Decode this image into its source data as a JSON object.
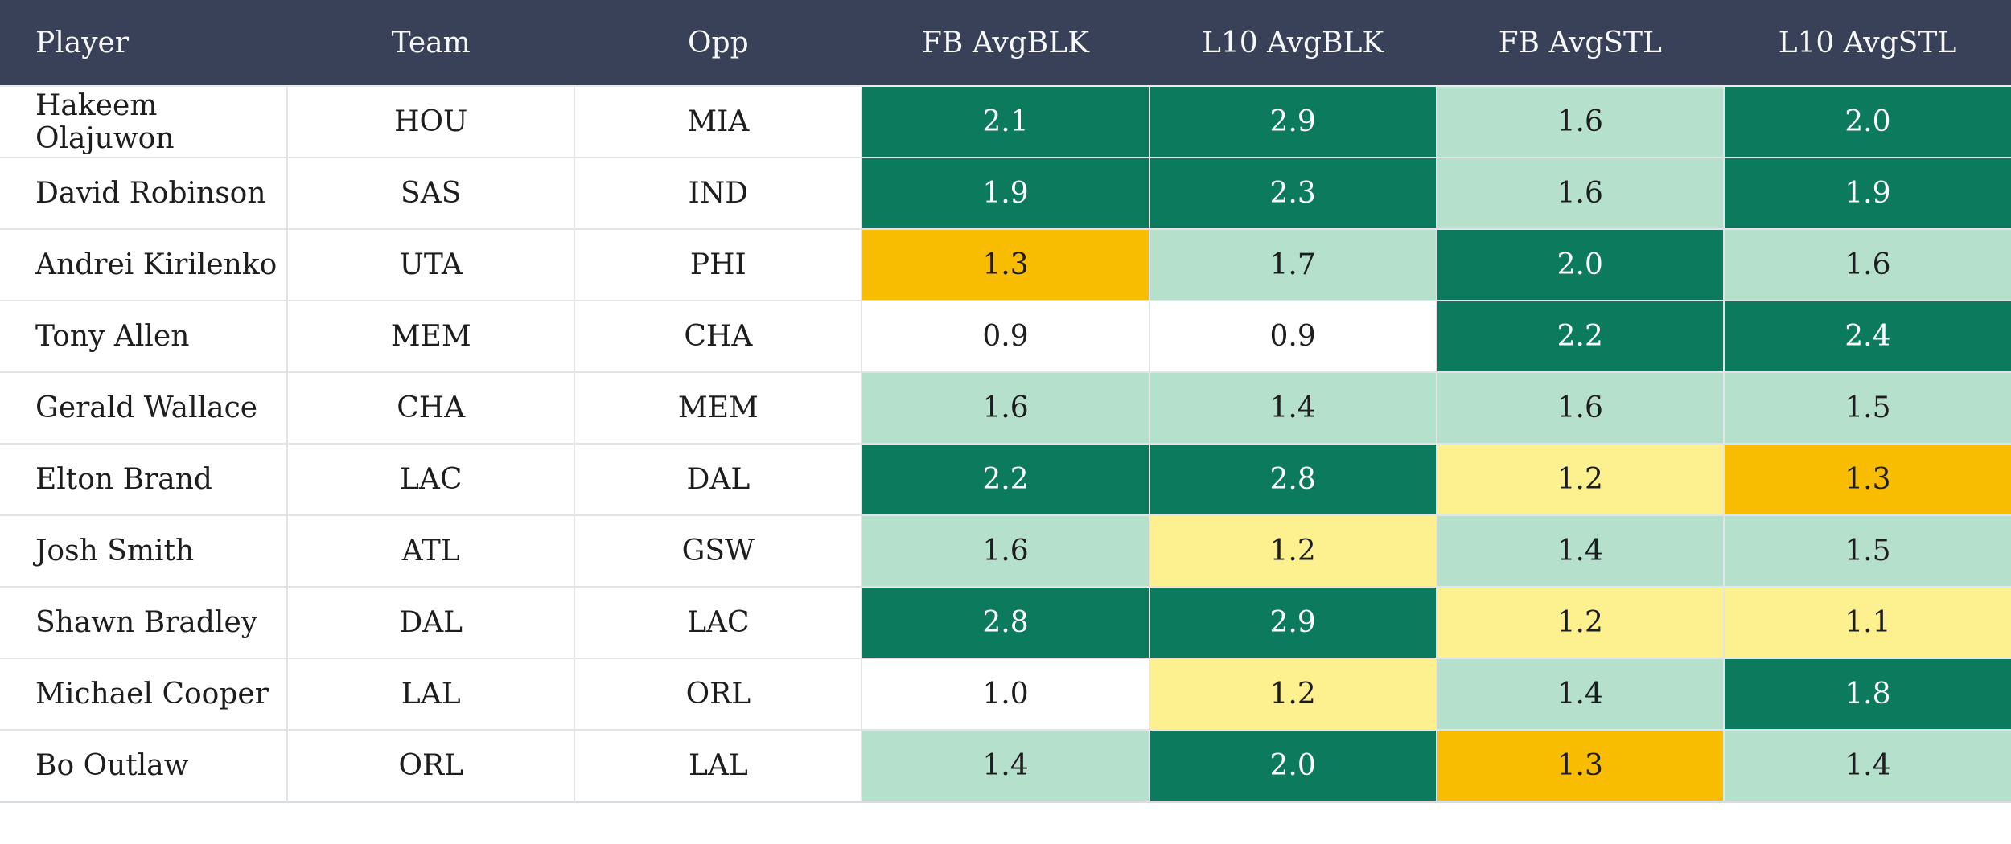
{
  "table": {
    "columns": {
      "player": "Player",
      "team": "Team",
      "opp": "Opp",
      "fb_avgblk": "FB AvgBLK",
      "l10_avgblk": "L10 AvgBLK",
      "fb_avgstl": "FB AvgSTL",
      "l10_avgstl": "L10 AvgSTL"
    },
    "rows": [
      {
        "player": "Hakeem Olajuwon",
        "team": "HOU",
        "opp": "MIA",
        "stats": [
          {
            "value": "2.1",
            "tier": "high"
          },
          {
            "value": "2.9",
            "tier": "high"
          },
          {
            "value": "1.6",
            "tier": "mid"
          },
          {
            "value": "2.0",
            "tier": "high"
          }
        ]
      },
      {
        "player": "David Robinson",
        "team": "SAS",
        "opp": "IND",
        "stats": [
          {
            "value": "1.9",
            "tier": "high"
          },
          {
            "value": "2.3",
            "tier": "high"
          },
          {
            "value": "1.6",
            "tier": "mid"
          },
          {
            "value": "1.9",
            "tier": "high"
          }
        ]
      },
      {
        "player": "Andrei Kirilenko",
        "team": "UTA",
        "opp": "PHI",
        "stats": [
          {
            "value": "1.3",
            "tier": "poor"
          },
          {
            "value": "1.7",
            "tier": "mid"
          },
          {
            "value": "2.0",
            "tier": "high"
          },
          {
            "value": "1.6",
            "tier": "mid"
          }
        ]
      },
      {
        "player": "Tony Allen",
        "team": "MEM",
        "opp": "CHA",
        "stats": [
          {
            "value": "0.9",
            "tier": "none"
          },
          {
            "value": "0.9",
            "tier": "none"
          },
          {
            "value": "2.2",
            "tier": "high"
          },
          {
            "value": "2.4",
            "tier": "high"
          }
        ]
      },
      {
        "player": "Gerald Wallace",
        "team": "CHA",
        "opp": "MEM",
        "stats": [
          {
            "value": "1.6",
            "tier": "mid"
          },
          {
            "value": "1.4",
            "tier": "mid"
          },
          {
            "value": "1.6",
            "tier": "mid"
          },
          {
            "value": "1.5",
            "tier": "mid"
          }
        ]
      },
      {
        "player": "Elton Brand",
        "team": "LAC",
        "opp": "DAL",
        "stats": [
          {
            "value": "2.2",
            "tier": "high"
          },
          {
            "value": "2.8",
            "tier": "high"
          },
          {
            "value": "1.2",
            "tier": "low"
          },
          {
            "value": "1.3",
            "tier": "poor"
          }
        ]
      },
      {
        "player": "Josh Smith",
        "team": "ATL",
        "opp": "GSW",
        "stats": [
          {
            "value": "1.6",
            "tier": "mid"
          },
          {
            "value": "1.2",
            "tier": "low"
          },
          {
            "value": "1.4",
            "tier": "mid"
          },
          {
            "value": "1.5",
            "tier": "mid"
          }
        ]
      },
      {
        "player": "Shawn Bradley",
        "team": "DAL",
        "opp": "LAC",
        "stats": [
          {
            "value": "2.8",
            "tier": "high"
          },
          {
            "value": "2.9",
            "tier": "high"
          },
          {
            "value": "1.2",
            "tier": "low"
          },
          {
            "value": "1.1",
            "tier": "low"
          }
        ]
      },
      {
        "player": "Michael Cooper",
        "team": "LAL",
        "opp": "ORL",
        "stats": [
          {
            "value": "1.0",
            "tier": "none"
          },
          {
            "value": "1.2",
            "tier": "low"
          },
          {
            "value": "1.4",
            "tier": "mid"
          },
          {
            "value": "1.8",
            "tier": "high"
          }
        ]
      },
      {
        "player": "Bo Outlaw",
        "team": "ORL",
        "opp": "LAL",
        "stats": [
          {
            "value": "1.4",
            "tier": "mid"
          },
          {
            "value": "2.0",
            "tier": "high"
          },
          {
            "value": "1.3",
            "tier": "poor"
          },
          {
            "value": "1.4",
            "tier": "mid"
          }
        ]
      }
    ]
  },
  "tiers": {
    "high": {
      "bg": "#0c7a5c",
      "text": "#ffffff"
    },
    "mid": {
      "bg": "#b5e0cb",
      "text": "#1d1d1f"
    },
    "low": {
      "bg": "#fdf08e",
      "text": "#1d1d1f"
    },
    "poor": {
      "bg": "#f8bd00",
      "text": "#1d1d1f"
    },
    "none": {
      "bg": "#ffffff",
      "text": "#1d1d1f"
    }
  },
  "colors": {
    "header_bg": "#384157",
    "header_text": "#f7f8f9",
    "grid_line": "#e2e4e8",
    "table_bottom_border": "#d8dbe0"
  }
}
